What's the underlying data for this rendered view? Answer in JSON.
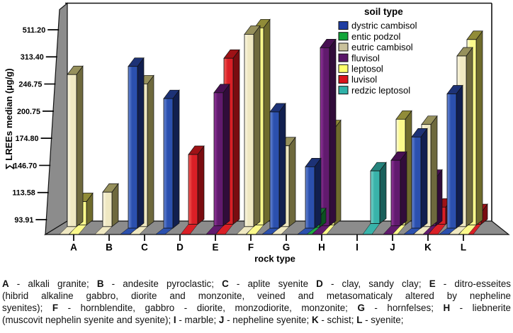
{
  "chart_data": {
    "type": "bar",
    "variant": "3d-clustered",
    "title": "",
    "x_label": "rock type",
    "y_label": "∑ LREEs median (µg/g)",
    "y_ticks": [
      "511.20",
      "313.40",
      "246.75",
      "200.75",
      "174.80",
      "146.70",
      "113.58",
      "93.91"
    ],
    "y_scale_note": "ordinal tick spacing, values in µg/g",
    "categories": [
      "A",
      "B",
      "C",
      "D",
      "E",
      "F",
      "G",
      "H",
      "I",
      "J",
      "K",
      "L"
    ],
    "legend_title": "soil type",
    "legend_position": "top-right",
    "grid": false,
    "frame_color": "#111111",
    "wall_color": "#8c8c8c",
    "series": [
      {
        "name": "dystric cambisol",
        "swatch": "#1f3da2",
        "main": "#2b50ae",
        "light": "#6c8bd8",
        "side": "#111f4f",
        "top": "#1d3276"
      },
      {
        "name": "entic podzol",
        "swatch": "#12a53a",
        "main": "#1fa844",
        "light": "#63d584",
        "side": "#0b5220",
        "top": "#147031"
      },
      {
        "name": "eutric cambisol",
        "swatch": "#c9c19b",
        "main": "#efe8c2",
        "light": "#fbf7e2",
        "side": "#6e693d",
        "top": "#96905c"
      },
      {
        "name": "fluvisol",
        "swatch": "#591668",
        "main": "#611a6e",
        "light": "#97399f",
        "side": "#310c3a",
        "top": "#471052"
      },
      {
        "name": "leptosol",
        "swatch": "#ffff6b",
        "main": "#fbf98b",
        "light": "#fffde0",
        "side": "#6f6b2d",
        "top": "#918c38"
      },
      {
        "name": "luvisol",
        "swatch": "#d8141c",
        "main": "#da1f26",
        "light": "#f4625c",
        "side": "#7a0c10",
        "top": "#9e1216"
      },
      {
        "name": "redzic leptosol",
        "swatch": "#2fb1a8",
        "main": "#39b3aa",
        "light": "#7fd6cf",
        "side": "#19605b",
        "top": "#25847d"
      }
    ],
    "groups": [
      {
        "rock": "A",
        "bars": [
          {
            "soil": "eutric cambisol",
            "value": 270
          },
          {
            "soil": "leptosol",
            "value": 107
          }
        ]
      },
      {
        "rock": "B",
        "bars": [
          {
            "soil": "eutric cambisol",
            "value": 114
          }
        ]
      },
      {
        "rock": "C",
        "bars": [
          {
            "soil": "dystric cambisol",
            "value": 290
          },
          {
            "soil": "eutric cambisol",
            "value": 247
          }
        ]
      },
      {
        "rock": "D",
        "bars": [
          {
            "soil": "dystric cambisol",
            "value": 222
          },
          {
            "soil": "luvisol",
            "value": 158
          }
        ]
      },
      {
        "rock": "E",
        "bars": [
          {
            "soil": "fluvisol",
            "value": 232
          },
          {
            "soil": "luvisol",
            "value": 310
          }
        ]
      },
      {
        "rock": "F",
        "bars": [
          {
            "soil": "eutric cambisol",
            "value": 478
          },
          {
            "soil": "leptosol",
            "value": 525
          }
        ]
      },
      {
        "rock": "G",
        "bars": [
          {
            "soil": "dystric cambisol",
            "value": 200
          },
          {
            "soil": "eutric cambisol",
            "value": 167
          }
        ]
      },
      {
        "rock": "H",
        "bars": [
          {
            "soil": "dystric cambisol",
            "value": 145
          },
          {
            "soil": "entic podzol",
            "value": 96
          },
          {
            "soil": "fluvisol",
            "value": 380
          },
          {
            "soil": "leptosol",
            "value": 184
          }
        ]
      },
      {
        "rock": "I",
        "bars": [
          {
            "soil": "redzic leptosol",
            "value": 140
          }
        ]
      },
      {
        "rock": "J",
        "bars": [
          {
            "soil": "fluvisol",
            "value": 152
          },
          {
            "soil": "leptosol",
            "value": 193
          }
        ]
      },
      {
        "rock": "K",
        "bars": [
          {
            "soil": "dystric cambisol",
            "value": 176
          },
          {
            "soil": "eutric cambisol",
            "value": 188
          },
          {
            "soil": "fluvisol",
            "value": 131
          },
          {
            "soil": "luvisol",
            "value": 103
          }
        ]
      },
      {
        "rock": "L",
        "bars": [
          {
            "soil": "dystric cambisol",
            "value": 230
          },
          {
            "soil": "eutric cambisol",
            "value": 320
          },
          {
            "soil": "leptosol",
            "value": 440
          },
          {
            "soil": "luvisol",
            "value": 99
          }
        ]
      }
    ]
  },
  "caption": {
    "lines": [
      {
        "justify": true,
        "runs": [
          {
            "t": "A",
            "b": true
          },
          {
            "t": " - alkali granite; "
          },
          {
            "t": "B",
            "b": true
          },
          {
            "t": " - andesite pyroclastic; "
          },
          {
            "t": "C",
            "b": true
          },
          {
            "t": " - aplite syenite "
          },
          {
            "t": "D",
            "b": true
          },
          {
            "t": " - clay, sandy clay; "
          },
          {
            "t": "E",
            "b": true
          },
          {
            "t": " - ditro-esseites"
          }
        ]
      },
      {
        "justify": true,
        "runs": [
          {
            "t": "(hibrid alkaline gabbro, diorite and monzonite, veined and metasomaticaly altered by nepheline"
          }
        ]
      },
      {
        "justify": true,
        "runs": [
          {
            "t": "syenites); "
          },
          {
            "t": "F",
            "b": true
          },
          {
            "t": " - hornblendite, gabbro - diorite, monzodiorite, monzonite; "
          },
          {
            "t": "G",
            "b": true
          },
          {
            "t": " - hornfelses; "
          },
          {
            "t": "H",
            "b": true
          },
          {
            "t": " - liebnerite"
          }
        ]
      },
      {
        "justify": false,
        "runs": [
          {
            "t": "(muscovit nephelin syenite and syenite); "
          },
          {
            "t": "I",
            "b": true
          },
          {
            "t": " - marble; "
          },
          {
            "t": "J",
            "b": true
          },
          {
            "t": " - nepheline syenite; "
          },
          {
            "t": "K",
            "b": true
          },
          {
            "t": " - schist; "
          },
          {
            "t": "L",
            "b": true
          },
          {
            "t": " - syenite;"
          }
        ]
      }
    ]
  }
}
